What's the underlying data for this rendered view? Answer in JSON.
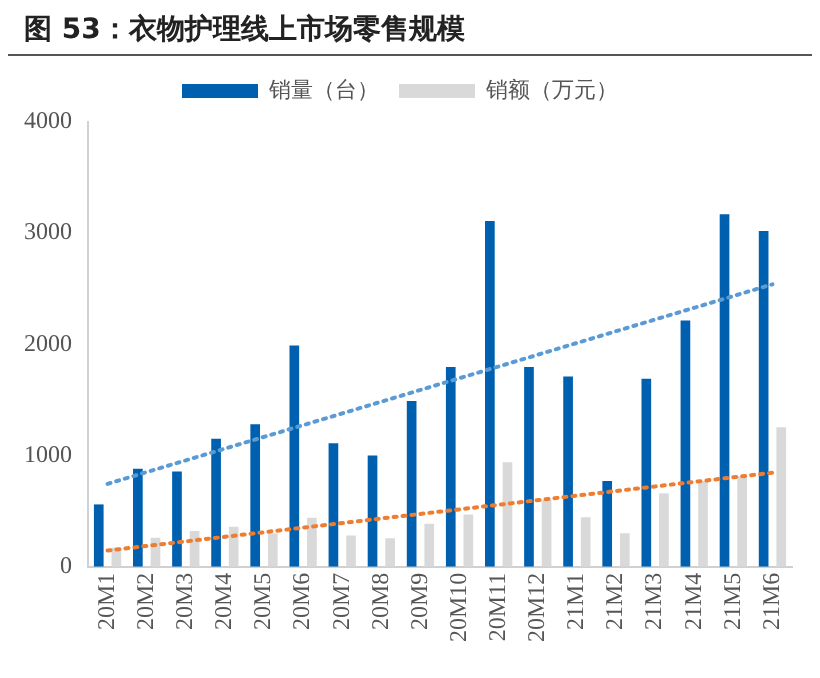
{
  "chart_data": {
    "type": "bar",
    "title": "图 53：衣物护理线上市场零售规模",
    "categories": [
      "20M1",
      "20M2",
      "20M3",
      "20M4",
      "20M5",
      "20M6",
      "20M7",
      "20M8",
      "20M9",
      "20M10",
      "20M11",
      "20M12",
      "21M1",
      "21M2",
      "21M3",
      "21M4",
      "21M5",
      "21M6"
    ],
    "series": [
      {
        "name": "销量（台）",
        "color": "#0060b0",
        "values": [
          560,
          880,
          855,
          1150,
          1280,
          1990,
          1110,
          1000,
          1490,
          1795,
          3110,
          1795,
          1710,
          770,
          1690,
          2215,
          3170,
          3020
        ]
      },
      {
        "name": "销额（万元）",
        "color": "#d9d9d9",
        "values": [
          170,
          260,
          320,
          360,
          300,
          440,
          280,
          256,
          385,
          470,
          940,
          600,
          445,
          300,
          660,
          770,
          810,
          1255
        ]
      },
      {
        "type": "line",
        "color": "#5b9bd5",
        "x": [
          "20M1",
          "21M6"
        ],
        "values": [
          745,
          2540
        ],
        "line_style": "dotted",
        "marker": "none"
      },
      {
        "type": "line",
        "color": "#ed7d31",
        "x": [
          "20M1",
          "21M6"
        ],
        "values": [
          145,
          845
        ],
        "line_style": "dotted",
        "marker": "none"
      }
    ],
    "ylim": [
      0,
      4000
    ],
    "yticks": [
      0,
      1000,
      2000,
      3000,
      4000
    ],
    "grid": false,
    "legend": "top"
  }
}
